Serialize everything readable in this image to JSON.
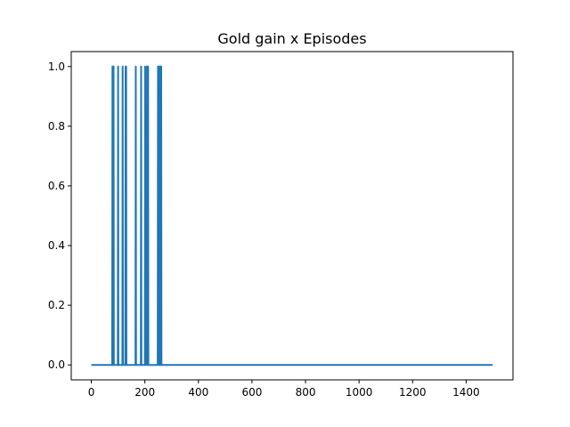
{
  "chart_data": {
    "type": "line",
    "title": "Gold gain x Episodes",
    "xlabel": "",
    "ylabel": "",
    "xlim": [
      -75,
      1575
    ],
    "ylim": [
      -0.05,
      1.05
    ],
    "xticks": [
      0,
      200,
      400,
      600,
      800,
      1000,
      1200,
      1400
    ],
    "yticks": [
      0.0,
      0.2,
      0.4,
      0.6,
      0.8,
      1.0
    ],
    "xtick_labels": [
      "0",
      "200",
      "400",
      "600",
      "800",
      "1000",
      "1200",
      "1400"
    ],
    "ytick_labels": [
      "0.0",
      "0.2",
      "0.4",
      "0.6",
      "0.8",
      "1.0"
    ],
    "grid": false,
    "series": [
      {
        "color": "#1f77b4",
        "x_range": [
          0,
          1499
        ],
        "baseline": 0,
        "spike_value": 1,
        "spike_episodes": [
          79,
          81,
          83,
          100,
          117,
          128,
          130,
          166,
          186,
          201,
          208,
          212,
          249,
          253,
          257,
          261
        ]
      }
    ]
  }
}
